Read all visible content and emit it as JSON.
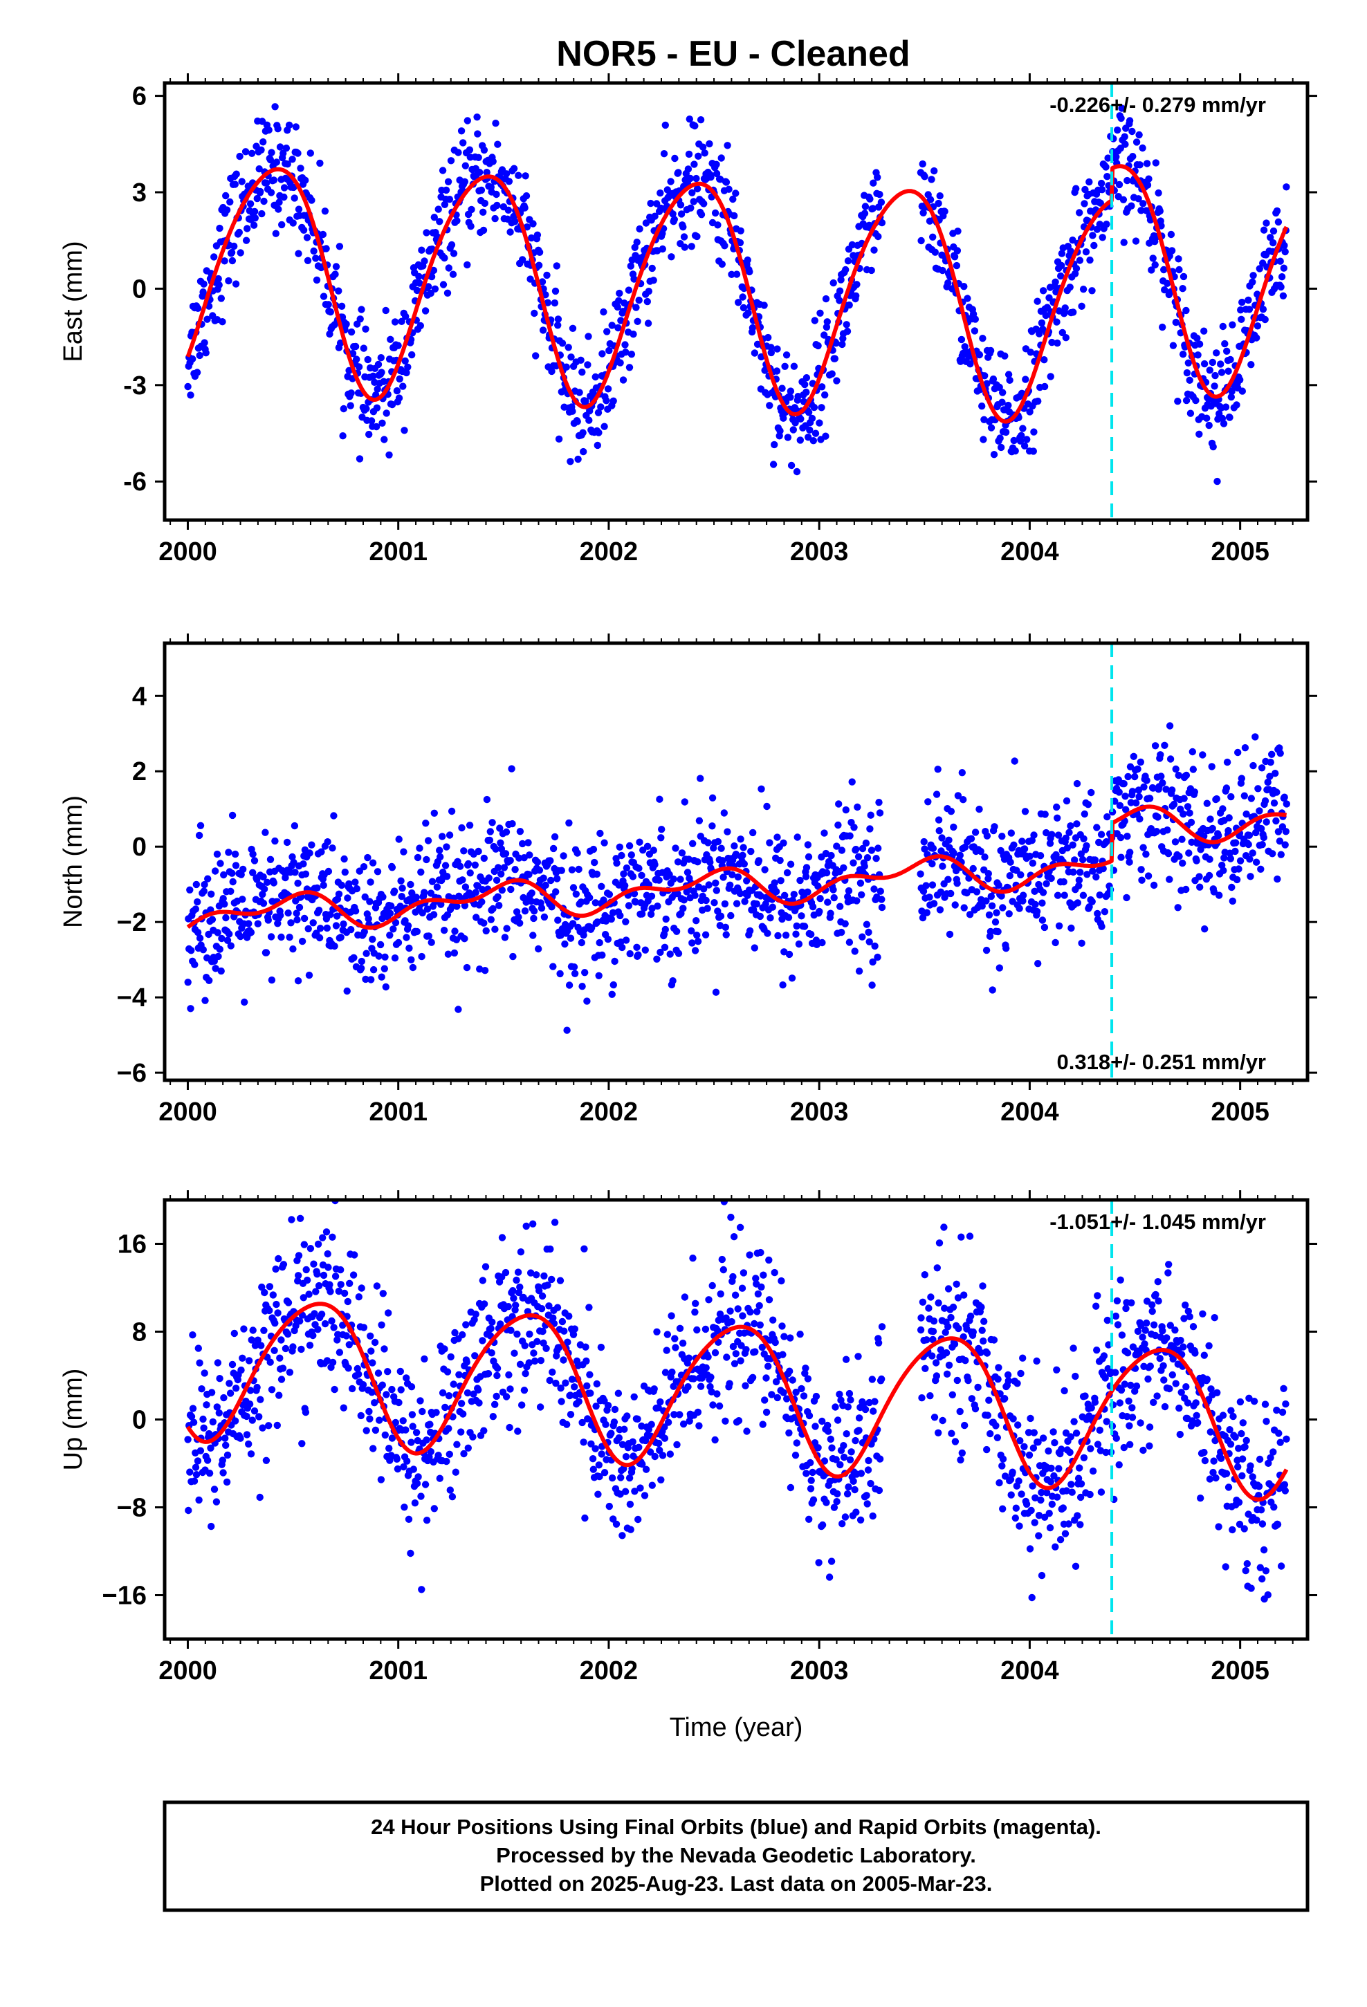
{
  "title": "NOR5  - EU - Cleaned",
  "footer": {
    "line1": "24 Hour Positions Using Final Orbits (blue) and Rapid Orbits (magenta).",
    "line2": "Processed by the Nevada Geodetic Laboratory.",
    "line3": "Plotted on 2025-Aug-23. Last data on 2005-Mar-23."
  },
  "colors": {
    "points": "#0000ff",
    "model": "#ff0000",
    "event_line": "#00e5ee",
    "frame": "#000000"
  },
  "chart_data": [
    {
      "type": "scatter",
      "ylabel": "East (mm)",
      "xlabel": "",
      "xlim": [
        1999.89,
        2005.32
      ],
      "ylim": [
        -7.2,
        6.4
      ],
      "xticks": [
        "2000",
        "2001",
        "2002",
        "2003",
        "2004",
        "2005"
      ],
      "yticks": [
        "6",
        "3",
        "0",
        "-3",
        "-6"
      ],
      "ytick_values": [
        6,
        3,
        0,
        -3,
        -6
      ],
      "rate_text": "-0.226+/- 0.279 mm/yr",
      "rate_position": "top-right",
      "event_line_x": 2004.39,
      "data_range": [
        2000.0,
        2005.22
      ],
      "model": {
        "offset": 0.0,
        "trend": -0.226,
        "annual_amplitude": 3.5,
        "annual_peak": 2000.4,
        "semiannual_amplitude": 0.4,
        "semiannual_peak": 2000.1,
        "step_at_event": 1.0
      },
      "scatter_noise_sd": 0.9,
      "point_count": 1650
    },
    {
      "type": "scatter",
      "ylabel": "North (mm)",
      "xlabel": "",
      "xlim": [
        1999.89,
        2005.32
      ],
      "ylim": [
        -6.2,
        5.4
      ],
      "xticks": [
        "2000",
        "2001",
        "2002",
        "2003",
        "2004",
        "2005"
      ],
      "yticks": [
        "4",
        "2",
        "0",
        "−2",
        "−4",
        "−6"
      ],
      "ytick_values": [
        4,
        2,
        0,
        -2,
        -4,
        -6
      ],
      "rate_text": "0.318+/- 0.251 mm/yr",
      "rate_position": "bottom-right",
      "event_line_x": 2004.39,
      "data_range": [
        2000.0,
        2005.22
      ],
      "model": {
        "offset": -1.05,
        "trend": 0.318,
        "annual_amplitude": 0.35,
        "annual_peak": 2000.45,
        "semiannual_amplitude": 0.25,
        "semiannual_peak": 2000.1,
        "step_at_event": 1.0
      },
      "scatter_noise_sd": 0.95,
      "point_count": 1650
    },
    {
      "type": "scatter",
      "ylabel": "Up (mm)",
      "xlabel": "Time (year)",
      "xlim": [
        1999.89,
        2005.32
      ],
      "ylim": [
        -20,
        20
      ],
      "xticks": [
        "2000",
        "2001",
        "2002",
        "2003",
        "2004",
        "2005"
      ],
      "yticks": [
        "16",
        "8",
        "0",
        "−8",
        "−16"
      ],
      "ytick_values": [
        16,
        8,
        0,
        -8,
        -16
      ],
      "rate_text": "-1.051+/- 1.045 mm/yr",
      "rate_position": "top-right",
      "event_line_x": 2004.39,
      "data_range": [
        2000.0,
        2005.22
      ],
      "model": {
        "offset": 2.5,
        "trend": -1.051,
        "annual_amplitude": 6.5,
        "annual_peak": 2000.6,
        "semiannual_amplitude": 0.8,
        "semiannual_peak": 2000.3,
        "step_at_event": 0.0
      },
      "scatter_noise_sd": 4.0,
      "point_count": 1650
    }
  ]
}
